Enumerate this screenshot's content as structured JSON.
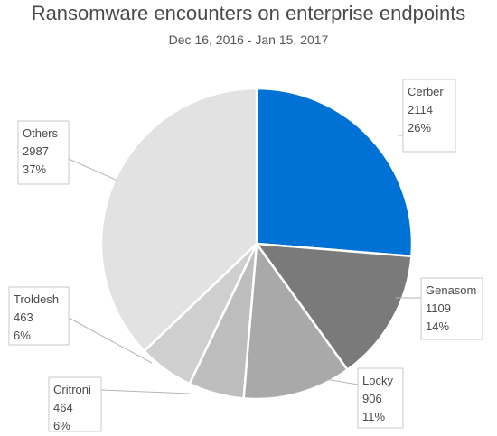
{
  "header": {
    "title": "Ransomware encounters on enterprise endpoints",
    "subtitle": "Dec 16, 2016 - Jan 15, 2017"
  },
  "chart_data": {
    "type": "pie",
    "title": "Ransomware encounters on enterprise endpoints",
    "subtitle": "Dec 16, 2016 - Jan 15, 2017",
    "legend": "none",
    "slices": [
      {
        "name": "Cerber",
        "value": 2114,
        "percent": "26%",
        "color": "#0072d6"
      },
      {
        "name": "Genasom",
        "value": 1109,
        "percent": "14%",
        "color": "#7a7a7a"
      },
      {
        "name": "Locky",
        "value": 906,
        "percent": "11%",
        "color": "#a9a9a9"
      },
      {
        "name": "Critroni",
        "value": 464,
        "percent": "6%",
        "color": "#bdbdbd"
      },
      {
        "name": "Troldesh",
        "value": 463,
        "percent": "6%",
        "color": "#cfcfcf"
      },
      {
        "name": "Others",
        "value": 2987,
        "percent": "37%",
        "color": "#e2e2e2"
      }
    ]
  }
}
